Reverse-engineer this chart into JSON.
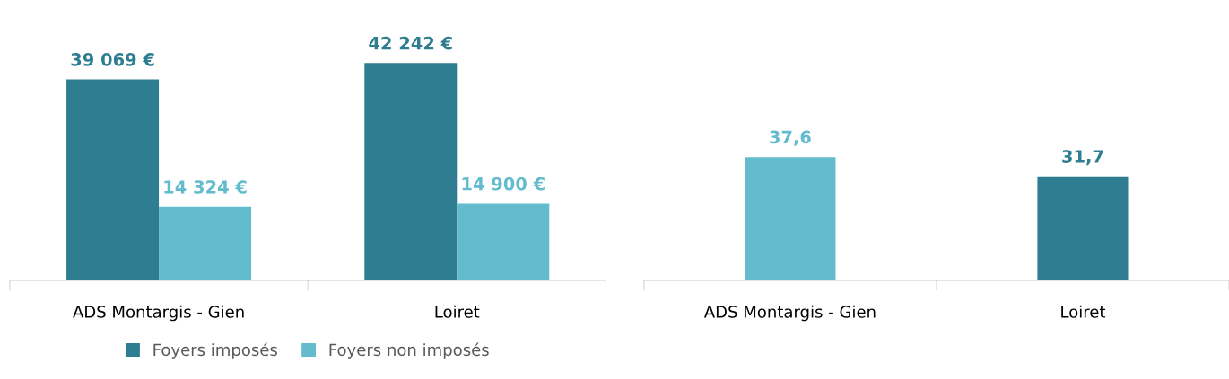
{
  "chart_data": [
    {
      "type": "bar",
      "categories": [
        "ADS Montargis - Gien",
        "Loiret"
      ],
      "series": [
        {
          "name": "Foyers imposés",
          "color": "#2e7d91",
          "values": [
            39069,
            42242
          ],
          "value_labels": [
            "39 069 €",
            "42 242 €"
          ]
        },
        {
          "name": "Foyers non imposés",
          "color": "#62bccd",
          "values": [
            14324,
            14900
          ],
          "value_labels": [
            "14 324 €",
            "14 900 €"
          ]
        }
      ],
      "legend": "bottom",
      "grid": false
    },
    {
      "type": "bar",
      "categories": [
        "ADS Montargis - Gien",
        "Loiret"
      ],
      "values": [
        37.6,
        31.7
      ],
      "colors": [
        "#62bccd",
        "#2e7d91"
      ],
      "value_labels": [
        "37,6",
        "31,7"
      ],
      "grid": false
    }
  ]
}
